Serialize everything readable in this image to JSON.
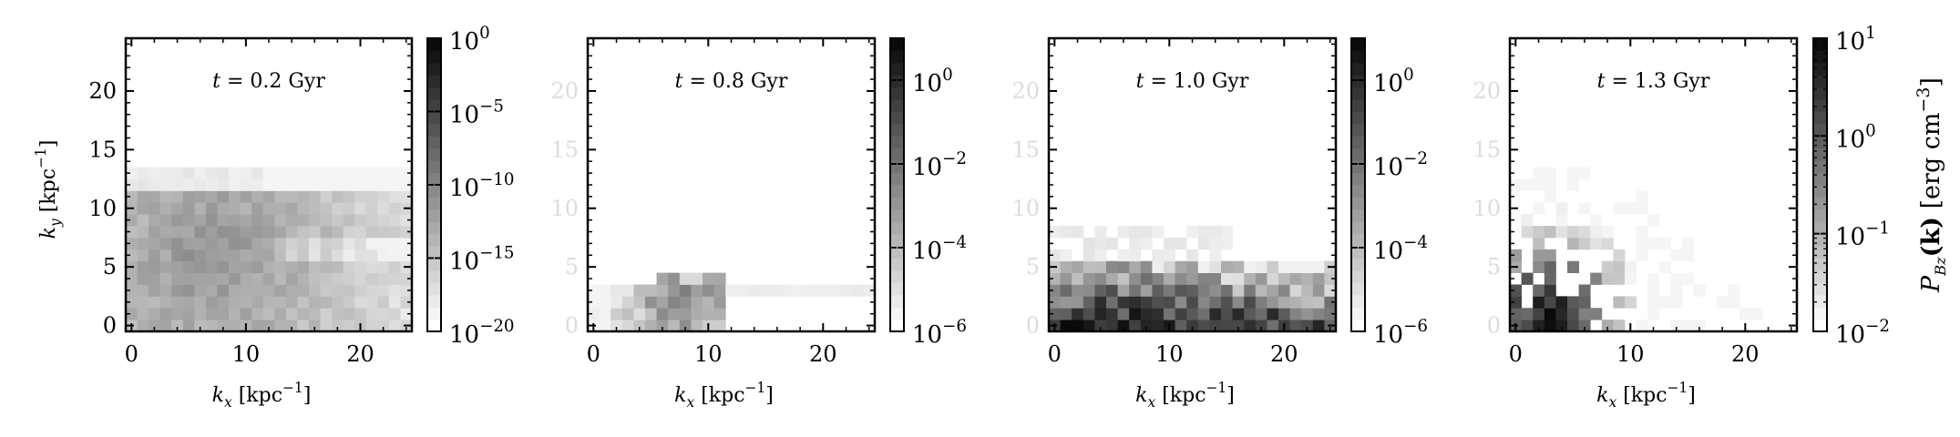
{
  "figure": {
    "colorbar_label_prefix": "P",
    "colorbar_label_sub": "Bz",
    "colorbar_label_bold": "(k)",
    "colorbar_label_units": "[erg cm",
    "colorbar_label_exp": "−3",
    "colorbar_label_close": "]"
  },
  "chart_data": [
    {
      "type": "heatmap",
      "title": "t = 0.2 Gyr",
      "xlabel": "k_x [kpc^-1]",
      "ylabel": "k_y [kpc^-1]",
      "xlim": [
        -0.5,
        24.5
      ],
      "ylim": [
        -0.5,
        24.5
      ],
      "xticks": [
        0,
        10,
        20
      ],
      "yticks": [
        0,
        5,
        10,
        15,
        20
      ],
      "ytick_labels_visible": true,
      "colorbar": {
        "scale": "log",
        "range": [
          1e-20,
          1.0
        ],
        "tick_values": [
          1e-20,
          1e-15,
          1e-10,
          1e-05,
          1.0
        ],
        "tick_labels": [
          [
            "10",
            "−20"
          ],
          [
            "10",
            "−15"
          ],
          [
            "10",
            "−10"
          ],
          [
            "10",
            "−5"
          ],
          [
            "10",
            "0"
          ]
        ]
      },
      "pattern": {
        "kind": "broad",
        "ky_max": 13,
        "peak_kx": 7,
        "peak_ky": 6,
        "level_max": 0.45
      }
    },
    {
      "type": "heatmap",
      "title": "t = 0.8 Gyr",
      "xlabel": "k_x [kpc^-1]",
      "ylabel": "",
      "xlim": [
        -0.5,
        24.5
      ],
      "ylim": [
        -0.5,
        24.5
      ],
      "xticks": [
        0,
        10,
        20
      ],
      "yticks": [
        0,
        5,
        10,
        15,
        20
      ],
      "ytick_labels_visible": false,
      "colorbar": {
        "scale": "log",
        "range": [
          1e-06,
          10.0
        ],
        "tick_values": [
          1e-06,
          0.0001,
          0.01,
          1.0
        ],
        "tick_labels": [
          [
            "10",
            "−6"
          ],
          [
            "10",
            "−4"
          ],
          [
            "10",
            "−2"
          ],
          [
            "10",
            "0"
          ]
        ]
      },
      "pattern": {
        "kind": "band",
        "ky_max": 4,
        "peak_kx": 8,
        "peak_ky": 3,
        "level_max": 0.55
      }
    },
    {
      "type": "heatmap",
      "title": "t = 1.0 Gyr",
      "xlabel": "k_x [kpc^-1]",
      "ylabel": "",
      "xlim": [
        -0.5,
        24.5
      ],
      "ylim": [
        -0.5,
        24.5
      ],
      "xticks": [
        0,
        10,
        20
      ],
      "yticks": [
        0,
        5,
        10,
        15,
        20
      ],
      "ytick_labels_visible": false,
      "colorbar": {
        "scale": "log",
        "range": [
          1e-06,
          10.0
        ],
        "tick_values": [
          1e-06,
          0.0001,
          0.01,
          1.0
        ],
        "tick_labels": [
          [
            "10",
            "−6"
          ],
          [
            "10",
            "−4"
          ],
          [
            "10",
            "−2"
          ],
          [
            "10",
            "0"
          ]
        ]
      },
      "pattern": {
        "kind": "dense",
        "ky_max": 8,
        "peak_kx": 5,
        "peak_ky": 0,
        "level_max": 0.95
      }
    },
    {
      "type": "heatmap",
      "title": "t = 1.3 Gyr",
      "xlabel": "k_x [kpc^-1]",
      "ylabel": "",
      "xlim": [
        -0.5,
        24.5
      ],
      "ylim": [
        -0.5,
        24.5
      ],
      "xticks": [
        0,
        10,
        20
      ],
      "yticks": [
        0,
        5,
        10,
        15,
        20
      ],
      "ytick_labels_visible": false,
      "colorbar": {
        "scale": "log",
        "range": [
          0.01,
          10.0
        ],
        "tick_values": [
          0.01,
          0.1,
          1.0,
          10.0
        ],
        "tick_labels": [
          [
            "10",
            "−2"
          ],
          [
            "10",
            "−1"
          ],
          [
            "10",
            "0"
          ],
          [
            "10",
            "1"
          ]
        ]
      },
      "pattern": {
        "kind": "corner",
        "ky_max": 13,
        "peak_kx": 3,
        "peak_ky": 1,
        "level_max": 1.0
      }
    }
  ]
}
